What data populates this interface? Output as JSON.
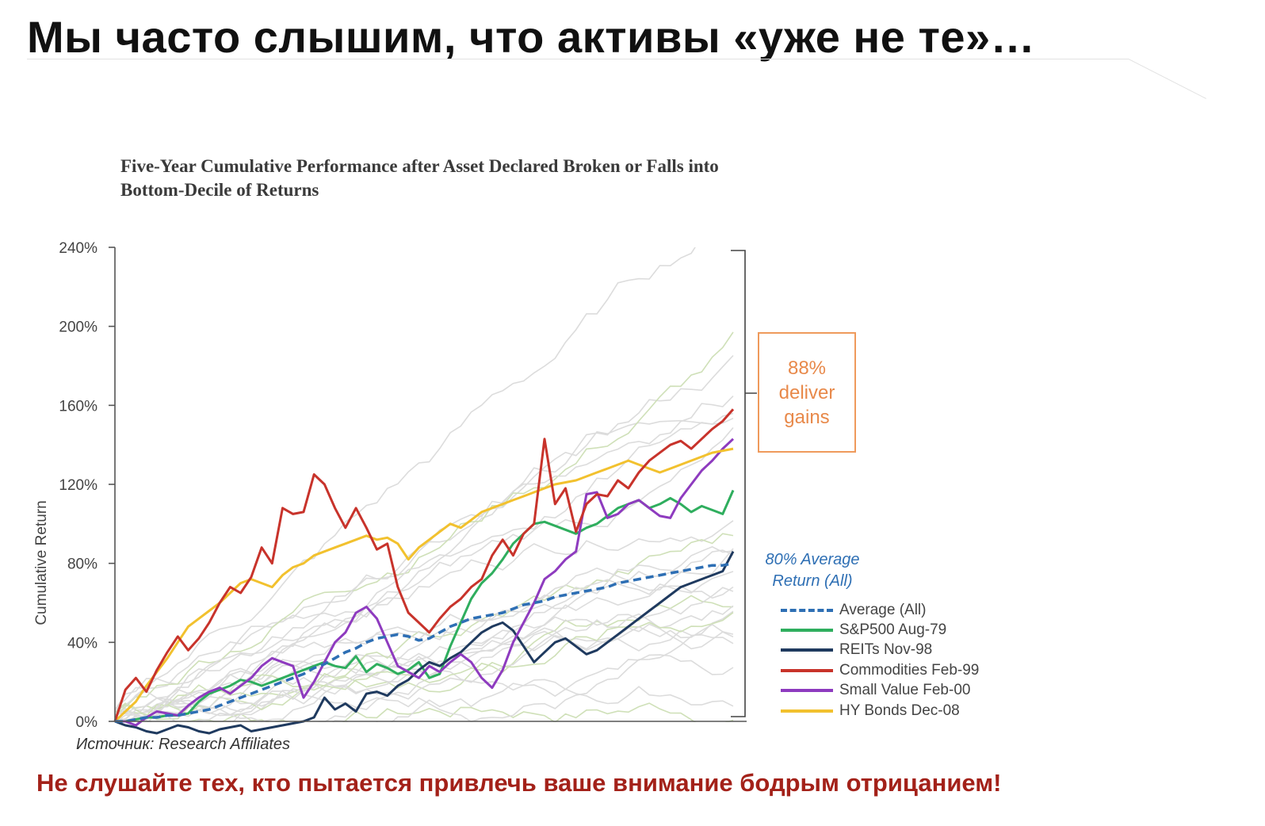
{
  "slide": {
    "title": "Мы часто слышим, что активы «уже не те»…",
    "bottom_message": "Не слушайте тех, кто пытается привлечь ваше внимание бодрым отрицанием!",
    "source": "Источник: Research Affiliates"
  },
  "chart_data": {
    "type": "line",
    "title_lines": [
      "Five-Year Cumulative Performance after Asset Declared Broken or Falls into",
      "Bottom-Decile of Returns"
    ],
    "ylabel": "Cumulative Return",
    "ylim": [
      0,
      240
    ],
    "yticks": [
      "0%",
      "40%",
      "80%",
      "120%",
      "160%",
      "200%",
      "240%"
    ],
    "ytick_values": [
      0,
      40,
      80,
      120,
      160,
      200,
      240
    ],
    "x_points": 60,
    "callout": {
      "lines": [
        "88%",
        "deliver",
        "gains"
      ]
    },
    "average_note": {
      "lines": [
        "80% Average",
        "Return (All)"
      ]
    },
    "legend_position": "bottom-right",
    "series": [
      {
        "name": "Average (All)",
        "color": "#2e6fb4",
        "dashed": true,
        "values": [
          0,
          0,
          1,
          2,
          2,
          3,
          3,
          4,
          5,
          6,
          8,
          10,
          12,
          14,
          16,
          18,
          20,
          22,
          24,
          27,
          29,
          32,
          35,
          37,
          40,
          42,
          43,
          44,
          43,
          41,
          42,
          45,
          48,
          50,
          52,
          53,
          54,
          55,
          57,
          59,
          60,
          61,
          63,
          64,
          65,
          66,
          67,
          68,
          70,
          71,
          72,
          73,
          74,
          75,
          76,
          77,
          78,
          79,
          79,
          80
        ]
      },
      {
        "name": "S&P500 Aug-79",
        "color": "#2fae5e",
        "dashed": false,
        "values": [
          0,
          0,
          1,
          2,
          2,
          3,
          3,
          4,
          10,
          14,
          16,
          18,
          21,
          20,
          18,
          20,
          22,
          24,
          26,
          28,
          30,
          28,
          27,
          33,
          25,
          29,
          27,
          24,
          26,
          30,
          22,
          24,
          38,
          50,
          62,
          70,
          75,
          82,
          90,
          95,
          100,
          101,
          99,
          97,
          95,
          98,
          100,
          104,
          108,
          110,
          112,
          108,
          110,
          113,
          110,
          106,
          109,
          107,
          105,
          117
        ]
      },
      {
        "name": "REITs Nov-98",
        "color": "#1f3a5f",
        "dashed": false,
        "values": [
          0,
          -2,
          -3,
          -5,
          -6,
          -4,
          -2,
          -3,
          -5,
          -6,
          -4,
          -3,
          -2,
          -5,
          -4,
          -3,
          -2,
          -1,
          0,
          2,
          12,
          6,
          9,
          5,
          14,
          15,
          13,
          18,
          21,
          26,
          30,
          28,
          32,
          35,
          40,
          45,
          48,
          50,
          46,
          38,
          30,
          35,
          40,
          42,
          38,
          34,
          36,
          40,
          44,
          48,
          52,
          56,
          60,
          64,
          68,
          70,
          72,
          74,
          76,
          86
        ]
      },
      {
        "name": "Commodities Feb-99",
        "color": "#c8332b",
        "dashed": false,
        "values": [
          0,
          16,
          22,
          15,
          26,
          35,
          43,
          36,
          42,
          50,
          60,
          68,
          65,
          73,
          88,
          80,
          108,
          105,
          106,
          125,
          120,
          108,
          98,
          108,
          98,
          87,
          90,
          68,
          55,
          50,
          45,
          52,
          58,
          62,
          68,
          72,
          84,
          92,
          84,
          95,
          100,
          143,
          110,
          118,
          96,
          110,
          115,
          114,
          122,
          118,
          126,
          132,
          136,
          140,
          142,
          138,
          143,
          148,
          152,
          158
        ]
      },
      {
        "name": "Small Value Feb-00",
        "color": "#8e3bbf",
        "dashed": false,
        "values": [
          0,
          0,
          -2,
          2,
          5,
          4,
          3,
          8,
          12,
          15,
          17,
          14,
          18,
          22,
          28,
          32,
          30,
          28,
          12,
          20,
          30,
          40,
          45,
          55,
          58,
          52,
          40,
          28,
          25,
          22,
          28,
          25,
          30,
          34,
          30,
          22,
          17,
          26,
          40,
          50,
          60,
          72,
          76,
          82,
          86,
          115,
          116,
          103,
          105,
          110,
          112,
          108,
          104,
          103,
          113,
          120,
          127,
          132,
          138,
          143
        ]
      },
      {
        "name": "HY Bonds Dec-08",
        "color": "#f2c12e",
        "dashed": false,
        "values": [
          0,
          5,
          10,
          18,
          25,
          32,
          40,
          48,
          52,
          56,
          60,
          65,
          70,
          72,
          70,
          68,
          74,
          78,
          80,
          84,
          86,
          88,
          90,
          92,
          94,
          92,
          93,
          90,
          82,
          88,
          92,
          96,
          100,
          98,
          102,
          106,
          108,
          110,
          112,
          114,
          116,
          118,
          120,
          121,
          122,
          124,
          126,
          128,
          130,
          132,
          130,
          128,
          126,
          128,
          130,
          132,
          134,
          136,
          137,
          138
        ]
      }
    ]
  }
}
